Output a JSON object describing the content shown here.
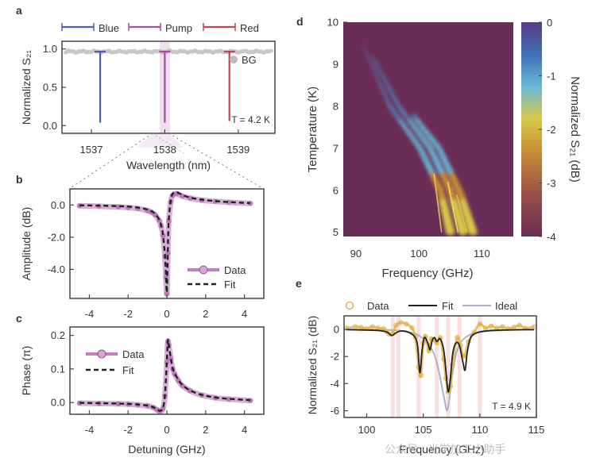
{
  "colors": {
    "blue": "#4a5fb0",
    "pump": "#a64ca6",
    "red": "#c0464f",
    "bg": "#bdbdbd",
    "fit": "#222222",
    "data_gold": "#e0ae3a",
    "ideal": "#b0b0cc",
    "heat_bg": "#6a2d55"
  },
  "watermark": "公众号 · 光学加工小助手",
  "chart_data": [
    {
      "id": "a",
      "type": "line",
      "panel_label": "a",
      "legend": [
        "Blue",
        "Pump",
        "Red"
      ],
      "bg_legend": "BG",
      "annotation": "T = 4.2 K",
      "xlabel": "Wavelength (nm)",
      "ylabel": "Normalized S₂₁",
      "xlim": [
        1536.6,
        1539.5
      ],
      "ylim": [
        -0.1,
        1.1
      ],
      "xticks": [
        1537,
        1538,
        1539
      ],
      "yticks": [
        {
          "v": 0.0,
          "label": "0.0"
        },
        {
          "v": 0.5,
          "label": "0.5"
        },
        {
          "v": 1.0,
          "label": "1.0"
        }
      ],
      "resonances": [
        {
          "name": "Blue",
          "x": 1537.12,
          "min": 0.04
        },
        {
          "name": "Pump",
          "x": 1538.0,
          "min": 0.04
        },
        {
          "name": "Red",
          "x": 1538.88,
          "min": 0.06
        }
      ],
      "background_level": 0.965,
      "pump_highlight": [
        1537.93,
        1538.07
      ]
    },
    {
      "id": "b",
      "type": "line",
      "panel_label": "b",
      "xlabel": "",
      "ylabel": "Amplitude (dB)",
      "xlim": [
        -5,
        5
      ],
      "ylim": [
        -5.8,
        1.0
      ],
      "xticks": [
        {
          "v": -4,
          "label": "-4"
        },
        {
          "v": -2,
          "label": "-2"
        },
        {
          "v": 0,
          "label": "0"
        },
        {
          "v": 2,
          "label": "2"
        },
        {
          "v": 4,
          "label": "4"
        }
      ],
      "yticks": [
        {
          "v": 0,
          "label": "0.0"
        },
        {
          "v": -2,
          "label": "-2.0"
        },
        {
          "v": -4,
          "label": "-4.0"
        }
      ],
      "legend": [
        "Data",
        "Fit"
      ],
      "series": [
        {
          "name": "Data",
          "x": [
            -4.5,
            -3.5,
            -2.5,
            -2.0,
            -1.5,
            -1.0,
            -0.8,
            -0.6,
            -0.4,
            -0.3,
            -0.2,
            -0.1,
            -0.05,
            0.0,
            0.05,
            0.1,
            0.2,
            0.3,
            0.5,
            0.8,
            1.2,
            1.8,
            2.5,
            3.2,
            4.3
          ],
          "y": [
            -0.05,
            -0.08,
            -0.12,
            -0.16,
            -0.22,
            -0.35,
            -0.45,
            -0.62,
            -0.95,
            -1.3,
            -1.9,
            -3.2,
            -4.5,
            -5.5,
            -3.0,
            -1.0,
            0.2,
            0.6,
            0.7,
            0.55,
            0.42,
            0.3,
            0.22,
            0.16,
            0.1
          ]
        },
        {
          "name": "Fit",
          "x": [
            -4.5,
            -3.5,
            -2.5,
            -2.0,
            -1.5,
            -1.0,
            -0.8,
            -0.6,
            -0.4,
            -0.3,
            -0.2,
            -0.1,
            -0.05,
            0.0,
            0.05,
            0.1,
            0.2,
            0.3,
            0.5,
            0.8,
            1.2,
            1.8,
            2.5,
            3.2,
            4.3
          ],
          "y": [
            -0.02,
            -0.04,
            -0.07,
            -0.1,
            -0.16,
            -0.28,
            -0.38,
            -0.55,
            -0.9,
            -1.25,
            -1.85,
            -3.1,
            -4.3,
            -5.4,
            -2.8,
            -0.9,
            0.3,
            0.7,
            0.8,
            0.62,
            0.46,
            0.33,
            0.24,
            0.18,
            0.12
          ]
        }
      ]
    },
    {
      "id": "c",
      "type": "line",
      "panel_label": "c",
      "xlabel": "Detuning (GHz)",
      "ylabel": "Phase (π)",
      "xlim": [
        -5,
        5
      ],
      "ylim": [
        -0.035,
        0.225
      ],
      "xticks": [
        {
          "v": -4,
          "label": "-4"
        },
        {
          "v": -2,
          "label": "-2"
        },
        {
          "v": 0,
          "label": "0"
        },
        {
          "v": 2,
          "label": "2"
        },
        {
          "v": 4,
          "label": "4"
        }
      ],
      "yticks": [
        {
          "v": 0.0,
          "label": "0.0"
        },
        {
          "v": 0.1,
          "label": "0.1"
        },
        {
          "v": 0.2,
          "label": "0.2"
        }
      ],
      "legend": [
        "Data",
        "Fit"
      ],
      "series": [
        {
          "name": "Data",
          "x": [
            -4.5,
            -3.5,
            -2.5,
            -2.0,
            -1.5,
            -1.0,
            -0.7,
            -0.5,
            -0.35,
            -0.2,
            -0.1,
            0.0,
            0.05,
            0.1,
            0.2,
            0.3,
            0.4,
            0.6,
            0.8,
            1.2,
            1.8,
            2.5,
            3.2,
            4.3
          ],
          "y": [
            -0.002,
            -0.003,
            -0.004,
            -0.005,
            -0.007,
            -0.01,
            -0.015,
            -0.022,
            -0.026,
            -0.018,
            0.02,
            0.12,
            0.18,
            0.17,
            0.13,
            0.1,
            0.085,
            0.065,
            0.05,
            0.035,
            0.022,
            0.014,
            0.01,
            0.006
          ]
        },
        {
          "name": "Fit",
          "x": [
            -4.5,
            -3.5,
            -2.5,
            -2.0,
            -1.5,
            -1.0,
            -0.7,
            -0.5,
            -0.35,
            -0.2,
            -0.1,
            0.0,
            0.05,
            0.1,
            0.2,
            0.3,
            0.4,
            0.6,
            0.8,
            1.2,
            1.8,
            2.5,
            3.2,
            4.3
          ],
          "y": [
            -0.001,
            -0.002,
            -0.003,
            -0.004,
            -0.006,
            -0.009,
            -0.014,
            -0.02,
            -0.025,
            -0.016,
            0.022,
            0.125,
            0.185,
            0.172,
            0.132,
            0.102,
            0.087,
            0.067,
            0.052,
            0.036,
            0.023,
            0.015,
            0.011,
            0.007
          ]
        }
      ]
    },
    {
      "id": "d",
      "type": "heatmap",
      "panel_label": "d",
      "xlabel": "Frequency (GHz)",
      "ylabel": "Temperature (K)",
      "colorbar_label": "Normalized S₂₁ (dB)",
      "xlim": [
        88,
        115
      ],
      "ylim": [
        4.9,
        10
      ],
      "xticks": [
        90,
        100,
        110
      ],
      "yticks": [
        5,
        6,
        7,
        8,
        9,
        10
      ],
      "colorbar_ticks": [
        {
          "v": 0,
          "label": "0"
        },
        {
          "v": -1,
          "label": "-1"
        },
        {
          "v": -2,
          "label": "-2"
        },
        {
          "v": -3,
          "label": "-3"
        },
        {
          "v": -4,
          "label": "-4"
        }
      ],
      "clim": [
        -4,
        0
      ],
      "background_value": -4,
      "resonance_branches": [
        {
          "f_at_T": [
            [
              5.0,
              105.0
            ],
            [
              6.0,
              103.4
            ],
            [
              7.0,
              100.2
            ],
            [
              8.0,
              95.4
            ],
            [
              9.5,
              91.0
            ]
          ],
          "depth": 0.25
        },
        {
          "f_at_T": [
            [
              5.0,
              107.0
            ],
            [
              6.0,
              105.0
            ],
            [
              7.0,
              101.8
            ],
            [
              8.0,
              96.8
            ],
            [
              9.2,
              92.6
            ]
          ],
          "depth": 0.32
        },
        {
          "f_at_T": [
            [
              5.0,
              108.6
            ],
            [
              6.0,
              106.4
            ],
            [
              7.0,
              103.2
            ],
            [
              7.8,
              99.0
            ]
          ],
          "depth": 0.24
        }
      ]
    },
    {
      "id": "e",
      "type": "line",
      "panel_label": "e",
      "xlabel": "Frequency (GHz)",
      "ylabel": "Normalized S₂₁ (dB)",
      "annotation": "T = 4.9 K",
      "legend": [
        "Data",
        "Fit",
        "Ideal"
      ],
      "xlim": [
        98,
        115
      ],
      "ylim": [
        -6.5,
        1.0
      ],
      "xticks": [
        100,
        105,
        110,
        115
      ],
      "yticks": [
        {
          "v": 0,
          "label": "0"
        },
        {
          "v": -2,
          "label": "-2"
        },
        {
          "v": -4,
          "label": "-4"
        },
        {
          "v": -6,
          "label": "-6"
        }
      ],
      "highlight_bands": [
        102.3,
        102.8,
        104.6,
        106.2,
        107.2,
        108.2,
        110.0
      ],
      "series": [
        {
          "name": "Data",
          "x": [
            98.2,
            99,
            99.5,
            100,
            100.5,
            101,
            101.5,
            101.8,
            102,
            102.3,
            102.6,
            103,
            103.5,
            104,
            104.3,
            104.6,
            104.8,
            105,
            105.2,
            105.5,
            105.7,
            106,
            106.2,
            106.5,
            106.8,
            107,
            107.2,
            107.4,
            107.6,
            108,
            108.3,
            108.6,
            109,
            109.5,
            110,
            110.5,
            111,
            111.5,
            112,
            112.5,
            113,
            113.5,
            114,
            114.8
          ],
          "y": [
            0.1,
            0.2,
            0.15,
            0.05,
            0.2,
            0.1,
            0.05,
            -0.2,
            -0.35,
            -0.3,
            0.3,
            0.5,
            0.4,
            0.1,
            -0.6,
            -2.8,
            -3.4,
            -1.0,
            -0.5,
            -1.6,
            -0.7,
            -0.8,
            -1.0,
            -0.6,
            -2.2,
            -3.6,
            -4.6,
            -4.2,
            -2.6,
            -0.6,
            -1.2,
            -2.0,
            -0.9,
            -0.2,
            0.4,
            0.1,
            0.25,
            0.1,
            0.2,
            0.05,
            0.15,
            0.3,
            0.1,
            0.2
          ]
        },
        {
          "name": "Fit",
          "x": [
            98.2,
            99,
            100,
            101,
            101.8,
            102.2,
            102.6,
            103,
            103.6,
            104.2,
            104.5,
            104.7,
            104.9,
            105.1,
            105.4,
            105.6,
            105.8,
            106.0,
            106.2,
            106.5,
            106.8,
            107.0,
            107.2,
            107.4,
            107.6,
            107.9,
            108.2,
            108.5,
            108.7,
            108.9,
            109.2,
            109.6,
            110.2,
            111,
            112,
            113,
            114,
            114.8
          ],
          "y": [
            -0.02,
            -0.03,
            -0.05,
            -0.08,
            -0.2,
            -0.45,
            -0.25,
            -0.12,
            -0.18,
            -0.5,
            -1.2,
            -3.2,
            -1.5,
            -0.6,
            -1.0,
            -1.5,
            -0.8,
            -0.6,
            -0.9,
            -0.7,
            -1.5,
            -3.0,
            -4.6,
            -3.6,
            -1.8,
            -1.0,
            -1.2,
            -2.4,
            -3.0,
            -1.6,
            -0.6,
            -0.3,
            -0.15,
            -0.08,
            -0.05,
            -0.03,
            -0.02,
            -0.02
          ]
        },
        {
          "name": "Ideal",
          "x": [
            98.2,
            100,
            102,
            103,
            104,
            104.5,
            105,
            105.5,
            106,
            106.3,
            106.6,
            106.9,
            107.1,
            107.3,
            107.5,
            107.8,
            108.2,
            109,
            110,
            112,
            114.8
          ],
          "y": [
            -0.01,
            -0.02,
            -0.05,
            -0.1,
            -0.25,
            -0.4,
            -0.7,
            -1.1,
            -1.9,
            -2.8,
            -4.0,
            -5.3,
            -6.0,
            -5.2,
            -3.8,
            -2.2,
            -1.1,
            -0.45,
            -0.2,
            -0.06,
            -0.02
          ]
        }
      ]
    }
  ]
}
